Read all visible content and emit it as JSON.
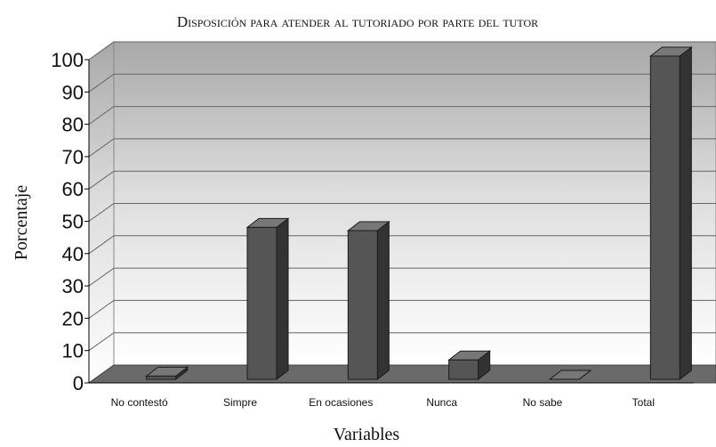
{
  "chart_data": {
    "type": "bar3d",
    "title": "Disposición para atender al tutoriado por parte del tutor",
    "x_label": "Variables",
    "y_label": "Porcentaje",
    "categories": [
      "No contestó",
      "Simpre",
      "En ocasiones",
      "Nunca",
      "No sabe",
      "Total"
    ],
    "values": [
      1,
      47,
      46,
      6,
      0,
      100
    ],
    "color": "#555555",
    "ylim": [
      0,
      100
    ],
    "yticks": [
      0,
      10,
      20,
      30,
      40,
      50,
      60,
      70,
      80,
      90,
      100
    ],
    "grid": true
  }
}
